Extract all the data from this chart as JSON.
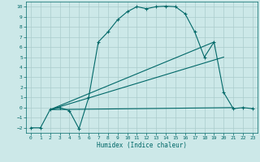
{
  "xlabel": "Humidex (Indice chaleur)",
  "bg_color": "#cce8e8",
  "grid_color": "#aacccc",
  "line_color": "#006868",
  "xlim": [
    -0.5,
    23.5
  ],
  "ylim": [
    -2.5,
    10.5
  ],
  "xticks": [
    0,
    1,
    2,
    3,
    4,
    5,
    6,
    7,
    8,
    9,
    10,
    11,
    12,
    13,
    14,
    15,
    16,
    17,
    18,
    19,
    20,
    21,
    22,
    23
  ],
  "yticks": [
    -2,
    -1,
    0,
    1,
    2,
    3,
    4,
    5,
    6,
    7,
    8,
    9,
    10
  ],
  "curve_x": [
    0,
    1,
    2,
    3,
    4,
    5,
    6,
    7,
    8,
    9,
    10,
    11,
    12,
    13,
    14,
    15,
    16,
    17,
    18,
    19,
    20,
    21,
    22,
    23
  ],
  "curve_y": [
    -2.0,
    -2.0,
    -0.2,
    0.0,
    -0.3,
    -2.1,
    1.0,
    6.5,
    7.5,
    8.7,
    9.5,
    10.0,
    9.8,
    10.0,
    10.05,
    10.0,
    9.3,
    7.5,
    5.0,
    6.5,
    1.5,
    -0.1,
    0.0,
    -0.1
  ],
  "line1_x": [
    2,
    21
  ],
  "line1_y": [
    -0.2,
    0.0
  ],
  "line2_x": [
    2,
    20
  ],
  "line2_y": [
    -0.2,
    5.0
  ],
  "line3_x": [
    2,
    19
  ],
  "line3_y": [
    -0.2,
    6.5
  ]
}
